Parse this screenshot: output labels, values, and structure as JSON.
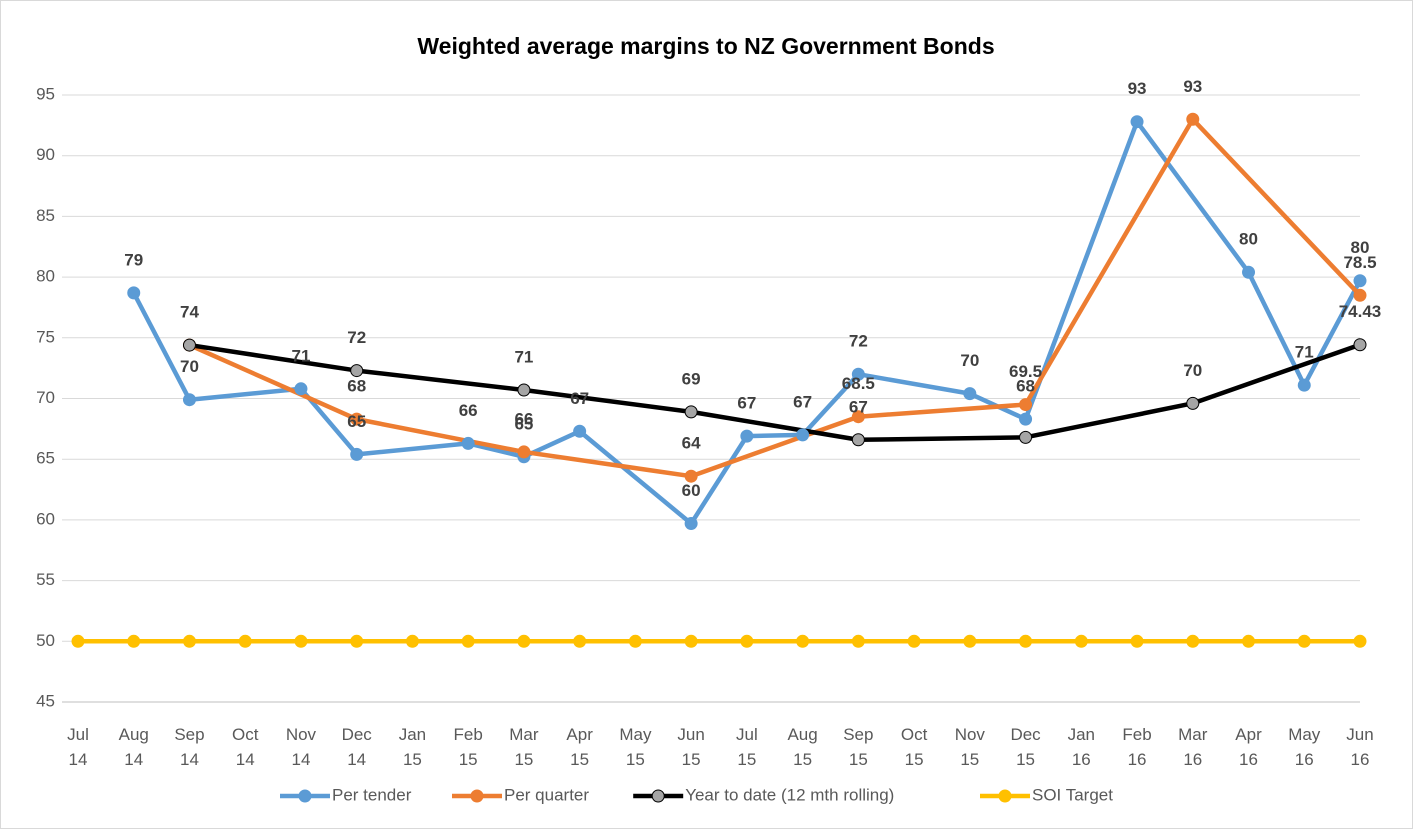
{
  "chart_data": {
    "type": "line",
    "title": "Weighted average margins to NZ Government Bonds",
    "categories": [
      "Jul 14",
      "Aug 14",
      "Sep 14",
      "Oct 14",
      "Nov 14",
      "Dec 14",
      "Jan 15",
      "Feb 15",
      "Mar 15",
      "Apr 15",
      "May 15",
      "Jun 15",
      "Jul 15",
      "Aug 15",
      "Sep 15",
      "Oct 15",
      "Nov 15",
      "Dec 15",
      "Jan 16",
      "Feb 16",
      "Mar 16",
      "Apr 16",
      "May 16",
      "Jun 16"
    ],
    "series": [
      {
        "name": "Per tender",
        "color": "#5b9bd5",
        "values": [
          null,
          78.7,
          69.9,
          null,
          70.8,
          65.4,
          null,
          66.3,
          65.2,
          67.3,
          null,
          59.7,
          66.9,
          67.0,
          72.0,
          null,
          70.4,
          68.3,
          null,
          92.8,
          null,
          80.4,
          71.1,
          79.7
        ],
        "value_labels": [
          null,
          "79",
          "70",
          null,
          "71",
          "65",
          null,
          "66",
          "65",
          "67",
          null,
          "60",
          "67",
          "67",
          "72",
          null,
          "70",
          "68",
          null,
          "93",
          null,
          "80",
          "71",
          "80"
        ]
      },
      {
        "name": "Per quarter",
        "color": "#ed7d31",
        "values": [
          null,
          null,
          74.4,
          null,
          null,
          68.3,
          null,
          null,
          65.6,
          null,
          null,
          63.6,
          null,
          null,
          68.5,
          null,
          null,
          69.5,
          null,
          null,
          93,
          null,
          null,
          78.5
        ],
        "value_labels": [
          null,
          null,
          null,
          null,
          null,
          "68",
          null,
          null,
          "66",
          null,
          null,
          "64",
          null,
          null,
          "68.5",
          null,
          null,
          "69.5",
          null,
          null,
          "93",
          null,
          null,
          "78.5"
        ]
      },
      {
        "name": "Year to date (12 mth rolling)",
        "color": "#000000",
        "marker_color": "#a5a5a5",
        "values": [
          null,
          null,
          74.4,
          null,
          null,
          72.3,
          null,
          null,
          70.7,
          null,
          null,
          68.9,
          null,
          null,
          66.6,
          null,
          null,
          66.8,
          null,
          null,
          69.6,
          null,
          null,
          74.43
        ],
        "value_labels": [
          null,
          null,
          "74",
          null,
          null,
          "72",
          null,
          null,
          "71",
          null,
          null,
          "69",
          null,
          null,
          "67",
          null,
          null,
          null,
          null,
          null,
          "70",
          null,
          null,
          "74.43"
        ]
      },
      {
        "name": "SOI Target",
        "color": "#ffc000",
        "values": [
          50,
          50,
          50,
          50,
          50,
          50,
          50,
          50,
          50,
          50,
          50,
          50,
          50,
          50,
          50,
          50,
          50,
          50,
          50,
          50,
          50,
          50,
          50,
          50
        ]
      }
    ],
    "ylim": [
      45,
      95
    ],
    "yticks": [
      45,
      50,
      55,
      60,
      65,
      70,
      75,
      80,
      85,
      90,
      95
    ],
    "grid": true,
    "span_gaps": true,
    "legend": "bottom"
  }
}
